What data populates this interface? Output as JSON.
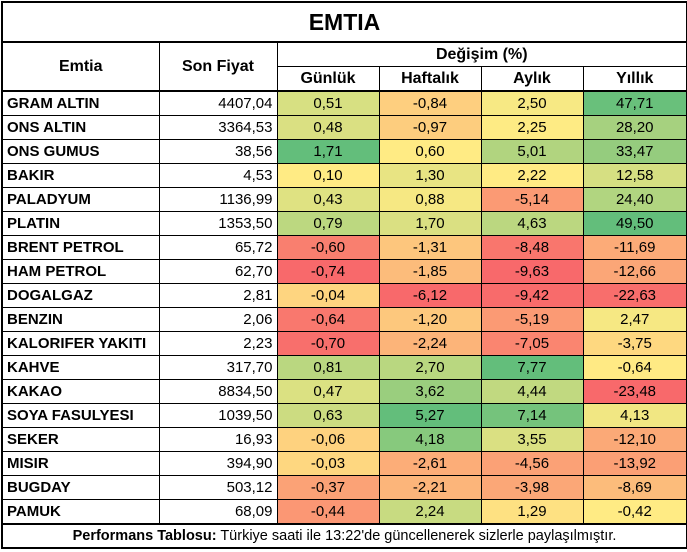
{
  "title": "EMTIA",
  "headers": {
    "commodity": "Emtia",
    "price": "Son Fiyat",
    "change": "Değişim (%)",
    "daily": "Günlük",
    "weekly": "Haftalık",
    "monthly": "Aylık",
    "yearly": "Yıllık"
  },
  "rows": [
    {
      "name": "GRAM ALTIN",
      "price": "4407,04",
      "daily": "0,51",
      "weekly": "-0,84",
      "monthly": "2,50",
      "yearly": "47,71"
    },
    {
      "name": "ONS ALTIN",
      "price": "3364,53",
      "daily": "0,48",
      "weekly": "-0,97",
      "monthly": "2,25",
      "yearly": "28,20"
    },
    {
      "name": "ONS GUMUS",
      "price": "38,56",
      "daily": "1,71",
      "weekly": "0,60",
      "monthly": "5,01",
      "yearly": "33,47"
    },
    {
      "name": "BAKIR",
      "price": "4,53",
      "daily": "0,10",
      "weekly": "1,30",
      "monthly": "2,22",
      "yearly": "12,58"
    },
    {
      "name": "PALADYUM",
      "price": "1136,99",
      "daily": "0,43",
      "weekly": "0,88",
      "monthly": "-5,14",
      "yearly": "24,40"
    },
    {
      "name": "PLATIN",
      "price": "1353,50",
      "daily": "0,79",
      "weekly": "1,70",
      "monthly": "4,63",
      "yearly": "49,50"
    },
    {
      "name": "BRENT PETROL",
      "price": "65,72",
      "daily": "-0,60",
      "weekly": "-1,31",
      "monthly": "-8,48",
      "yearly": "-11,69"
    },
    {
      "name": "HAM PETROL",
      "price": "62,70",
      "daily": "-0,74",
      "weekly": "-1,85",
      "monthly": "-9,63",
      "yearly": "-12,66"
    },
    {
      "name": "DOGALGAZ",
      "price": "2,81",
      "daily": "-0,04",
      "weekly": "-6,12",
      "monthly": "-9,42",
      "yearly": "-22,63"
    },
    {
      "name": "BENZIN",
      "price": "2,06",
      "daily": "-0,64",
      "weekly": "-1,20",
      "monthly": "-5,19",
      "yearly": "2,47"
    },
    {
      "name": "KALORIFER YAKITI",
      "price": "2,23",
      "daily": "-0,70",
      "weekly": "-2,24",
      "monthly": "-7,05",
      "yearly": "-3,75"
    },
    {
      "name": "KAHVE",
      "price": "317,70",
      "daily": "0,81",
      "weekly": "2,70",
      "monthly": "7,77",
      "yearly": "-0,64"
    },
    {
      "name": "KAKAO",
      "price": "8834,50",
      "daily": "0,47",
      "weekly": "3,62",
      "monthly": "4,44",
      "yearly": "-23,48"
    },
    {
      "name": "SOYA FASULYESI",
      "price": "1039,50",
      "daily": "0,63",
      "weekly": "5,27",
      "monthly": "7,14",
      "yearly": "4,13"
    },
    {
      "name": "SEKER",
      "price": "16,93",
      "daily": "-0,06",
      "weekly": "4,18",
      "monthly": "3,55",
      "yearly": "-12,10"
    },
    {
      "name": "MISIR",
      "price": "394,90",
      "daily": "-0,03",
      "weekly": "-2,61",
      "monthly": "-4,56",
      "yearly": "-13,92"
    },
    {
      "name": "BUGDAY",
      "price": "503,12",
      "daily": "-0,37",
      "weekly": "-2,21",
      "monthly": "-3,98",
      "yearly": "-8,69"
    },
    {
      "name": "PAMUK",
      "price": "68,09",
      "daily": "-0,44",
      "weekly": "2,24",
      "monthly": "1,29",
      "yearly": "-0,42"
    }
  ],
  "colors": {
    "negative_max": "#f8696b",
    "neutral": "#ffeb84",
    "positive_max": "#63be7b"
  },
  "footer": {
    "bold": "Performans Tablosu:",
    "text": " Türkiye saati ile 13:22'de güncellenerek sizlerle paylaşılmıştır."
  }
}
